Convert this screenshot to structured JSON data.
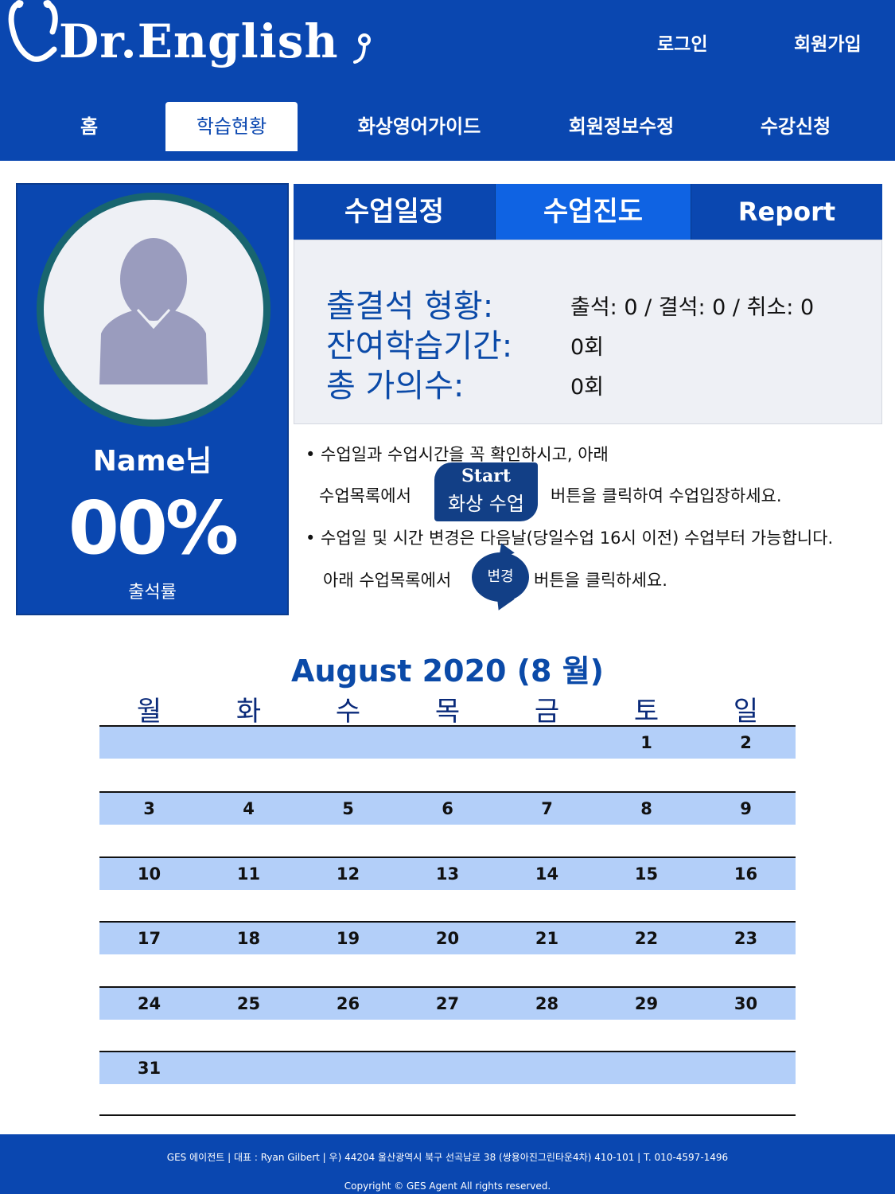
{
  "header": {
    "logo_text": "Dr.English",
    "login": "로그인",
    "signup": "회원가입",
    "nav": [
      {
        "label": "홈"
      },
      {
        "label": "학습현황"
      },
      {
        "label": "화상영어가이드"
      },
      {
        "label": "회원정보수정"
      },
      {
        "label": "수강신청"
      }
    ]
  },
  "profile": {
    "name": "Name님",
    "rate": "00%",
    "rate_label": "출석률"
  },
  "tabs": [
    {
      "label": "수업일정"
    },
    {
      "label": "수업진도"
    },
    {
      "label": "Report"
    }
  ],
  "stats": [
    {
      "label": "출결석 형황:",
      "value": "출석: 0 / 결석: 0 / 취소: 0"
    },
    {
      "label": "잔여학습기간:",
      "value": "0회"
    },
    {
      "label": "총 가의수:",
      "value": "0회"
    }
  ],
  "notes": {
    "line1": "• 수업일과 수업시간을 꼭 확인하시고, 아래",
    "line2a": "수업목록에서",
    "line2b": "버튼을 클릭하여 수업입장하세요.",
    "line3": "• 수업일 및 시간 변경은 다음날(당일수업 16시 이전) 수업부터 가능합니다.",
    "line4a": "아래 수업목록에서",
    "line4b": "버튼을 클릭하세요.",
    "start_top": "Start",
    "start_bottom": "화상 수업",
    "change": "변경"
  },
  "calendar": {
    "title": "August 2020 (8 월)",
    "weekdays": [
      "월",
      "화",
      "수",
      "목",
      "금",
      "토",
      "일"
    ],
    "weeks": [
      [
        "",
        "",
        "",
        "",
        "",
        "1",
        "2"
      ],
      [
        "3",
        "4",
        "5",
        "6",
        "7",
        "8",
        "9"
      ],
      [
        "10",
        "11",
        "12",
        "13",
        "14",
        "15",
        "16"
      ],
      [
        "17",
        "18",
        "19",
        "20",
        "21",
        "22",
        "23"
      ],
      [
        "24",
        "25",
        "26",
        "27",
        "28",
        "29",
        "30"
      ],
      [
        "31",
        "",
        "",
        "",
        "",
        "",
        ""
      ]
    ]
  },
  "footer": {
    "info": "GES 에이전트 | 대표 : Ryan Gilbert | 우) 44204 울산광역시 북구 선곡남로 38 (쌍용아진그린타운4차) 410-101 | T. 010-4597-1496",
    "copyright": "Copyright © GES Agent All rights reserved."
  },
  "colors": {
    "brand": "#0a47b0",
    "active_tab": "#0f63e3",
    "calendar_band": "#b3cff9",
    "stat_label": "#0b4aa8"
  }
}
